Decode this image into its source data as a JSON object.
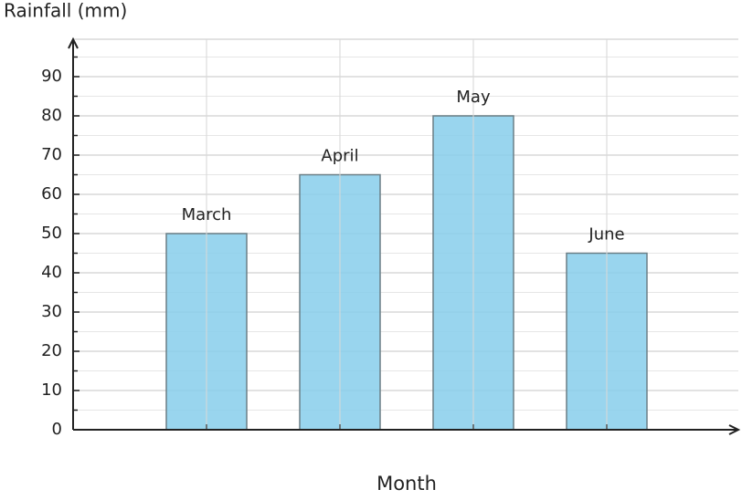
{
  "chart_data": {
    "type": "bar",
    "y_label": "Rainfall (mm)",
    "x_label": "Month",
    "categories": [
      "March",
      "April",
      "May",
      "June"
    ],
    "values": [
      50,
      65,
      80,
      45
    ],
    "color": "#87ceeb",
    "ylim": [
      0,
      100
    ],
    "yticks": [
      0,
      10,
      20,
      30,
      40,
      50,
      60,
      70,
      80,
      90
    ],
    "grid": true
  }
}
